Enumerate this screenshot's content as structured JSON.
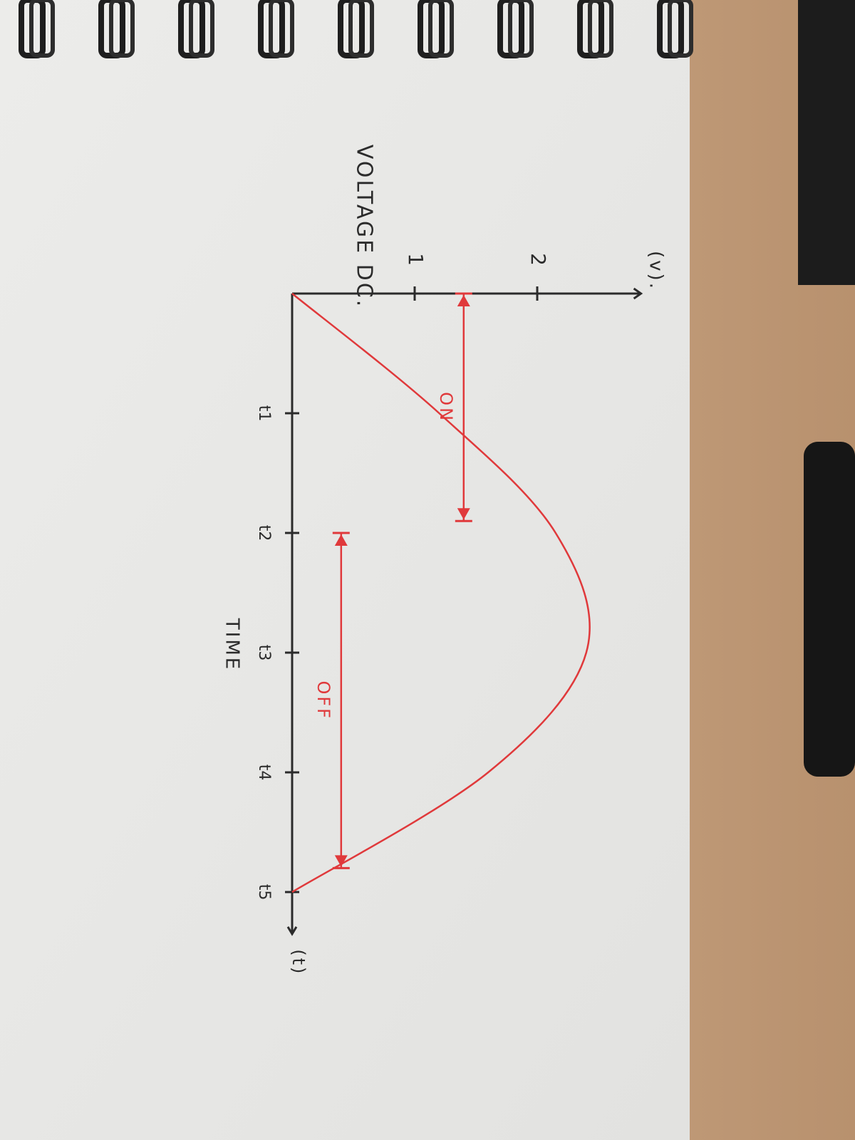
{
  "chart_data": {
    "type": "line",
    "title": "VOLTAGE DC.",
    "ylabel": "(v).",
    "xlabel": "TIME",
    "x_axis_end_label": "(t)",
    "x_tick_labels": [
      "t1",
      "t2",
      "t3",
      "t4",
      "t5"
    ],
    "y_tick_labels": [
      "1",
      "2"
    ],
    "x": [
      0,
      1,
      2,
      3,
      4,
      5
    ],
    "y": [
      0,
      1.2,
      2.15,
      2.4,
      1.6,
      0
    ],
    "xlim": [
      0,
      5.6
    ],
    "ylim": [
      0,
      2.8
    ],
    "annotations": [
      {
        "label": "ON",
        "y": 1.4,
        "x_start": 0,
        "x_end": 1.9
      },
      {
        "label": "OFF",
        "y": 0.4,
        "x_start": 2.0,
        "x_end": 4.8
      }
    ],
    "colors": {
      "axes": "#2b2b2b",
      "curve": "#e0393b",
      "paper": "#f3f3f1"
    }
  }
}
